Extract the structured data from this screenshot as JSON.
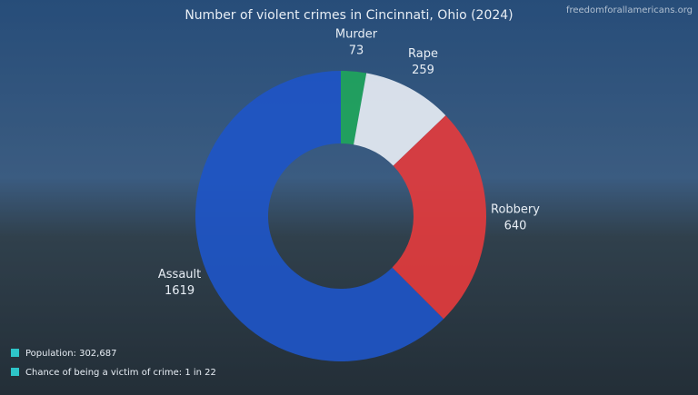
{
  "chart_data": {
    "type": "donut",
    "title": "Number of violent crimes in Cincinnati, Ohio (2024)",
    "source": "freedomforallamericans.org",
    "categories": [
      "Murder",
      "Rape",
      "Robbery",
      "Assault"
    ],
    "values": [
      73,
      259,
      640,
      1619
    ],
    "colors": [
      "#1fa55c",
      "#e6ecf3",
      "#e23b3d",
      "#1e55c6"
    ],
    "notes": [
      "Population: 302,687",
      "Chance of being a victim of crime: 1 in 22"
    ]
  }
}
